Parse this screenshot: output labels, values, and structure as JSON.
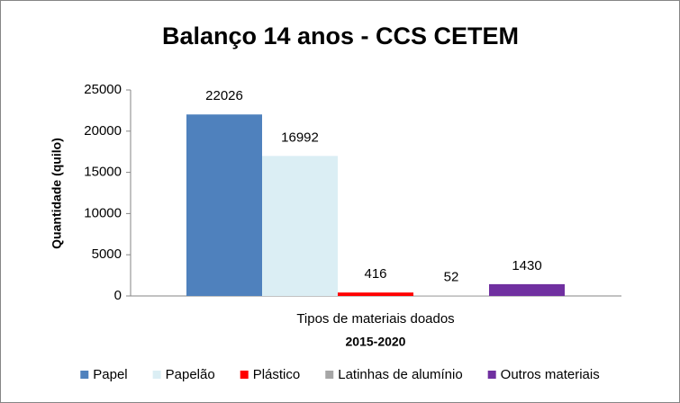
{
  "chart_data": {
    "type": "bar",
    "title": "Balanço 14 anos - CCS CETEM",
    "y_label": "Quantidade (quilo)",
    "x_label": "2015-2020",
    "categories": [
      "Tipos  de materiais doados"
    ],
    "series": [
      {
        "name": "Papel",
        "color": "#4f81bd",
        "values": [
          22026
        ]
      },
      {
        "name": "Papelão",
        "color": "#dbeef4",
        "values": [
          16992
        ]
      },
      {
        "name": "Plástico",
        "color": "#ff0000",
        "values": [
          416
        ]
      },
      {
        "name": "Latinhas de alumínio",
        "color": "#a6a6a6",
        "values": [
          52
        ]
      },
      {
        "name": "Outros materiais",
        "color": "#7030a0",
        "values": [
          1430
        ]
      }
    ],
    "ylim": [
      0,
      25000
    ],
    "yticks": [
      0,
      5000,
      10000,
      15000,
      20000,
      25000
    ],
    "grid": false,
    "data_labels": true,
    "legend": "bottom"
  }
}
